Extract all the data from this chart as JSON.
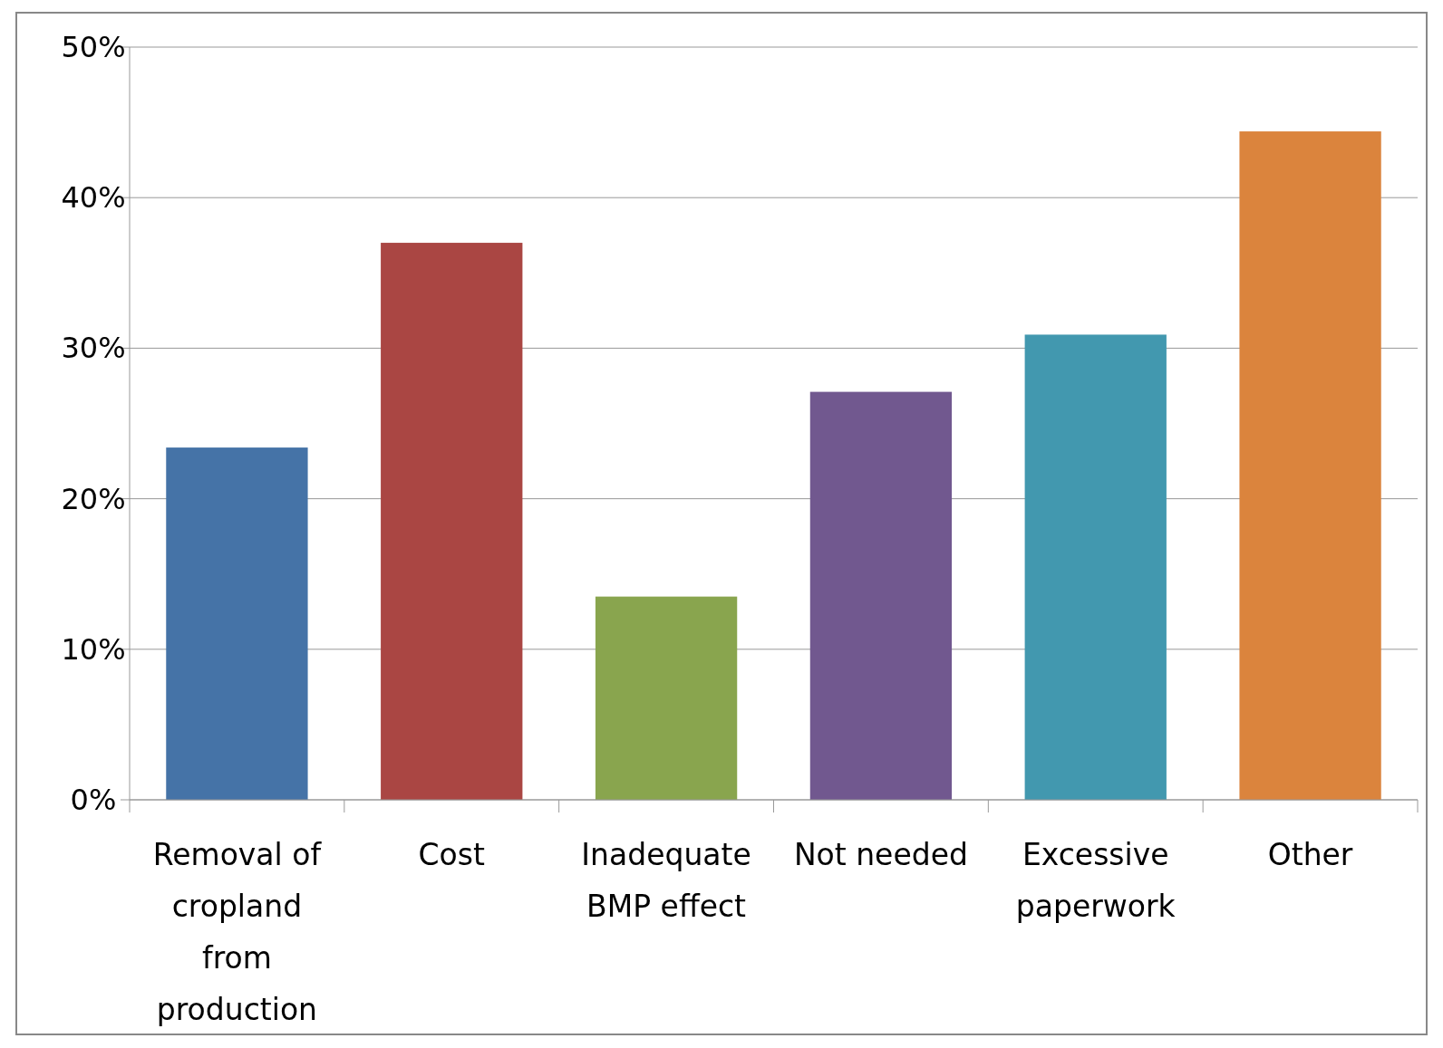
{
  "chart_data": {
    "type": "bar",
    "categories": [
      "Removal of cropland from production",
      "Cost",
      "Inadequate BMP effect",
      "Not needed",
      "Excessive paperwork",
      "Other"
    ],
    "values": [
      23.4,
      37.0,
      13.5,
      27.1,
      30.9,
      44.4
    ],
    "colors": [
      "#4573a7",
      "#aa4643",
      "#89a54e",
      "#71588f",
      "#4298af",
      "#db843d"
    ],
    "ylim": [
      0,
      50
    ],
    "yticks": [
      {
        "value": 0,
        "label": "0%"
      },
      {
        "value": 10,
        "label": "10%"
      },
      {
        "value": 20,
        "label": "20%"
      },
      {
        "value": 30,
        "label": "30%"
      },
      {
        "value": 40,
        "label": "40%"
      },
      {
        "value": 50,
        "label": "50%"
      }
    ],
    "grid": "y"
  }
}
